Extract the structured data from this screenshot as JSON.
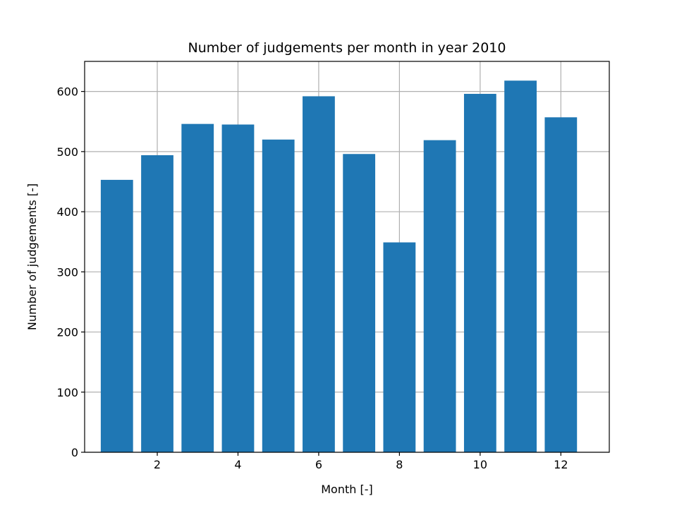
{
  "chart_data": {
    "type": "bar",
    "title": "Number of judgements per month in year 2010",
    "xlabel": "Month [-]",
    "ylabel": "Number of judgements [-]",
    "x": [
      1,
      2,
      3,
      4,
      5,
      6,
      7,
      8,
      9,
      10,
      11,
      12
    ],
    "values": [
      453,
      494,
      546,
      545,
      520,
      592,
      496,
      349,
      519,
      596,
      618,
      557
    ],
    "xlim": [
      0.2,
      13.2
    ],
    "ylim": [
      0,
      650
    ],
    "xticks": [
      2,
      4,
      6,
      8,
      10,
      12
    ],
    "yticks": [
      0,
      100,
      200,
      300,
      400,
      500,
      600
    ],
    "bar_width": 0.8,
    "grid": true,
    "legend": "none",
    "colors": {
      "bar": "#1f77b4",
      "grid": "#b0b0b0",
      "axis": "#000000"
    }
  }
}
